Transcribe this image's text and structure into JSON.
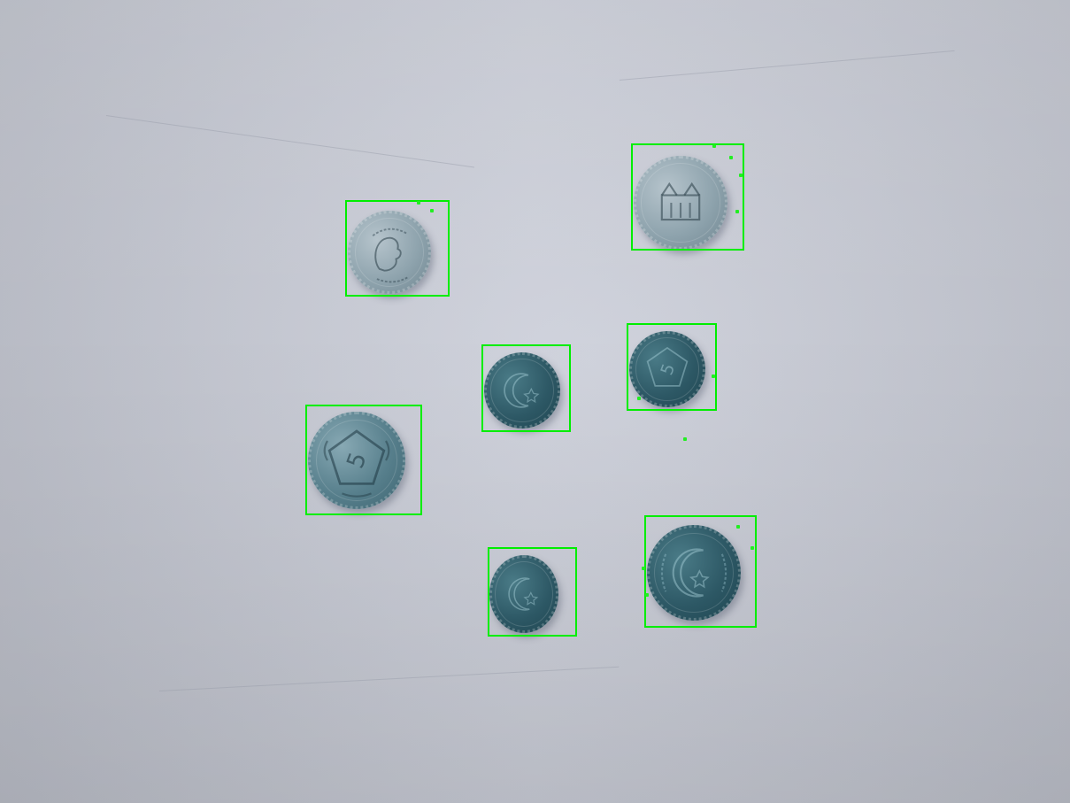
{
  "image": {
    "background_color": "#c9ccd6",
    "box_color": "#00ee00"
  },
  "coins": [
    {
      "name": "coin-silver-portrait",
      "face": "portrait",
      "tone": "silver"
    },
    {
      "name": "coin-silver-building",
      "face": "building",
      "tone": "silver"
    },
    {
      "name": "coin-dark-crescent-small",
      "face": "crescent",
      "tone": "teal-dark"
    },
    {
      "name": "coin-dark-five-small",
      "face": "five",
      "tone": "teal-dark"
    },
    {
      "name": "coin-five-large",
      "face": "five",
      "tone": "teal-light"
    },
    {
      "name": "coin-dark-crescent-bottom",
      "face": "crescent",
      "tone": "teal-dark"
    },
    {
      "name": "coin-dark-crescent-large",
      "face": "crescent",
      "tone": "teal-dark"
    }
  ],
  "detections_count": 7
}
